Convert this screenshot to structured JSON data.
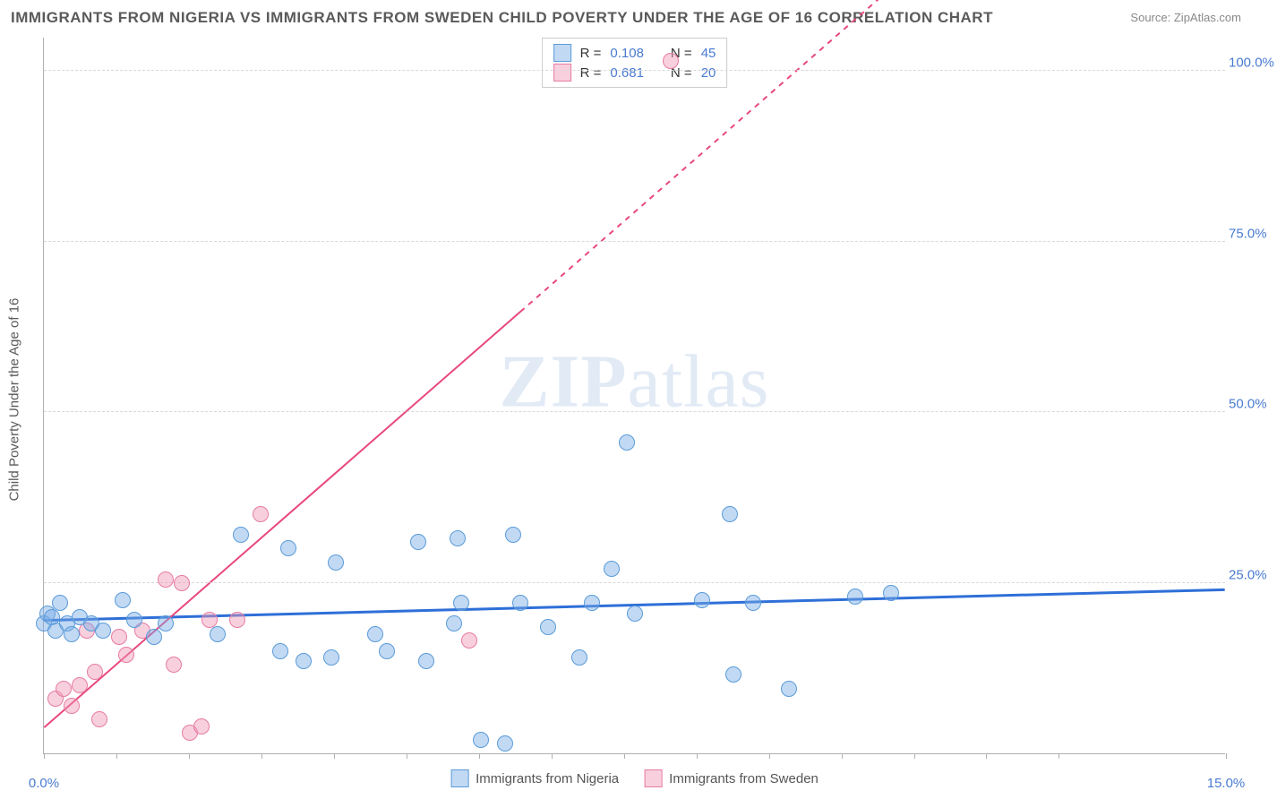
{
  "title": "IMMIGRANTS FROM NIGERIA VS IMMIGRANTS FROM SWEDEN CHILD POVERTY UNDER THE AGE OF 16 CORRELATION CHART",
  "source_label": "Source:",
  "source_value": "ZipAtlas.com",
  "ylabel": "Child Poverty Under the Age of 16",
  "watermark_a": "ZIP",
  "watermark_b": "atlas",
  "chart": {
    "type": "scatter",
    "background_color": "#ffffff",
    "grid_color": "#d8d8d8",
    "axis_color": "#b0b0b0",
    "tick_label_color": "#4a7bd0",
    "xlim": [
      0.0,
      15.0
    ],
    "ylim": [
      0.0,
      105.0
    ],
    "yticks": [
      25.0,
      50.0,
      75.0,
      100.0
    ],
    "ytick_labels": [
      "25.0%",
      "50.0%",
      "75.0%",
      "100.0%"
    ],
    "xtick_positions": [
      0.0,
      0.92,
      1.84,
      2.76,
      3.68,
      4.6,
      5.52,
      6.44,
      7.36,
      8.28,
      9.2,
      10.12,
      11.04,
      11.96,
      12.88,
      15.0
    ],
    "xtick_labels": {
      "0.0": "0.0%",
      "15.0": "15.0%"
    },
    "label_fontsize": 15,
    "title_fontsize": 17
  },
  "series": {
    "nigeria": {
      "label": "Immigrants from Nigeria",
      "color_fill": "rgba(120,170,230,0.45)",
      "color_stroke": "#5a9bd8",
      "R": "0.108",
      "N": "45",
      "marker_radius": 9,
      "trend": {
        "x1": 0.0,
        "y1": 19.5,
        "x2": 15.0,
        "y2": 24.0,
        "color": "#2e6fd8",
        "width": 3,
        "dash_from_x": null
      },
      "points": [
        [
          0.0,
          19.0
        ],
        [
          0.05,
          20.5
        ],
        [
          0.1,
          20.0
        ],
        [
          0.15,
          18.0
        ],
        [
          0.2,
          22.0
        ],
        [
          0.3,
          19.0
        ],
        [
          0.35,
          17.5
        ],
        [
          0.45,
          20.0
        ],
        [
          0.6,
          19.0
        ],
        [
          0.75,
          18.0
        ],
        [
          1.0,
          22.5
        ],
        [
          1.15,
          19.5
        ],
        [
          1.4,
          17.0
        ],
        [
          1.55,
          19.0
        ],
        [
          2.2,
          17.5
        ],
        [
          2.5,
          32.0
        ],
        [
          3.0,
          15.0
        ],
        [
          3.1,
          30.0
        ],
        [
          3.3,
          13.5
        ],
        [
          3.65,
          14.0
        ],
        [
          3.7,
          28.0
        ],
        [
          4.2,
          17.5
        ],
        [
          4.35,
          15.0
        ],
        [
          4.75,
          31.0
        ],
        [
          4.85,
          13.5
        ],
        [
          5.2,
          19.0
        ],
        [
          5.25,
          31.5
        ],
        [
          5.3,
          22.0
        ],
        [
          5.55,
          2.0
        ],
        [
          5.85,
          1.5
        ],
        [
          5.95,
          32.0
        ],
        [
          6.05,
          22.0
        ],
        [
          6.4,
          18.5
        ],
        [
          6.8,
          14.0
        ],
        [
          6.95,
          22.0
        ],
        [
          7.2,
          27.0
        ],
        [
          7.4,
          45.5
        ],
        [
          7.5,
          20.5
        ],
        [
          8.35,
          22.5
        ],
        [
          8.7,
          35.0
        ],
        [
          8.75,
          11.5
        ],
        [
          9.0,
          22.0
        ],
        [
          9.45,
          9.5
        ],
        [
          10.3,
          23.0
        ],
        [
          10.75,
          23.5
        ]
      ]
    },
    "sweden": {
      "label": "Immigrants from Sweden",
      "color_fill": "rgba(240,150,180,0.45)",
      "color_stroke": "#e67ba5",
      "R": "0.681",
      "N": "20",
      "marker_radius": 9,
      "trend": {
        "x1": 0.0,
        "y1": 3.8,
        "x2": 15.0,
        "y2": 155.0,
        "color": "#e8487c",
        "width": 2,
        "dash_from_x": 6.05
      },
      "points": [
        [
          0.15,
          8.0
        ],
        [
          0.25,
          9.5
        ],
        [
          0.35,
          7.0
        ],
        [
          0.45,
          10.0
        ],
        [
          0.55,
          18.0
        ],
        [
          0.65,
          12.0
        ],
        [
          0.7,
          5.0
        ],
        [
          0.95,
          17.0
        ],
        [
          1.05,
          14.5
        ],
        [
          1.25,
          18.0
        ],
        [
          1.55,
          25.5
        ],
        [
          1.65,
          13.0
        ],
        [
          1.75,
          25.0
        ],
        [
          1.85,
          3.0
        ],
        [
          2.0,
          4.0
        ],
        [
          2.1,
          19.5
        ],
        [
          2.45,
          19.5
        ],
        [
          2.75,
          35.0
        ],
        [
          5.4,
          16.5
        ],
        [
          7.95,
          101.5
        ]
      ]
    }
  },
  "legend_top": {
    "R_label": "R =",
    "N_label": "N ="
  }
}
